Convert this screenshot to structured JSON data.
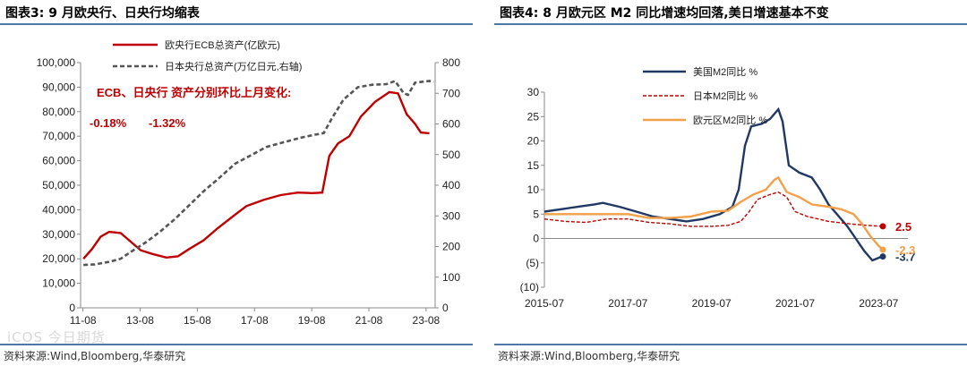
{
  "left": {
    "title": "图表3:  9 月欧央行、日央行均缩表",
    "source": "资料来源:Wind,Bloomberg,华泰研究",
    "watermark": "iCOS 今日期货",
    "annotation": "ECB、日央行 资产分别环比上月变化:",
    "annotation_ecb": "-0.18%",
    "annotation_boj": "-1.32%",
    "chart_data": {
      "type": "line",
      "xlim": [
        2011.5,
        2023.9
      ],
      "x_ticks": [
        "11-08",
        "13-08",
        "15-08",
        "17-08",
        "19-08",
        "21-08",
        "23-08"
      ],
      "y_left_ticks": [
        "0",
        "10,000",
        "20,000",
        "30,000",
        "40,000",
        "50,000",
        "60,000",
        "70,000",
        "80,000",
        "90,000",
        "100,000"
      ],
      "y_left_lim": [
        0,
        100000
      ],
      "y_right_ticks": [
        "0",
        "100",
        "200",
        "300",
        "400",
        "500",
        "600",
        "700",
        "800"
      ],
      "y_right_lim": [
        0,
        800
      ],
      "series": [
        {
          "name": "欧央行ECB总资产(亿欧元)",
          "axis": "left",
          "color": "#c00000",
          "style": "solid",
          "points": [
            [
              2011.6,
              20000
            ],
            [
              2011.9,
              24000
            ],
            [
              2012.2,
              29000
            ],
            [
              2012.5,
              31000
            ],
            [
              2012.9,
              30500
            ],
            [
              2013.2,
              27500
            ],
            [
              2013.6,
              23500
            ],
            [
              2014.0,
              22000
            ],
            [
              2014.5,
              20500
            ],
            [
              2014.9,
              21000
            ],
            [
              2015.3,
              24000
            ],
            [
              2015.8,
              27500
            ],
            [
              2016.3,
              32500
            ],
            [
              2016.9,
              38000
            ],
            [
              2017.3,
              41500
            ],
            [
              2017.9,
              44000
            ],
            [
              2018.5,
              46000
            ],
            [
              2019.1,
              47000
            ],
            [
              2019.6,
              46800
            ],
            [
              2019.95,
              47000
            ],
            [
              2020.2,
              62000
            ],
            [
              2020.5,
              67000
            ],
            [
              2020.9,
              70000
            ],
            [
              2021.3,
              78000
            ],
            [
              2021.8,
              84000
            ],
            [
              2022.3,
              88000
            ],
            [
              2022.6,
              87500
            ],
            [
              2022.9,
              79000
            ],
            [
              2023.2,
              75000
            ],
            [
              2023.4,
              71500
            ],
            [
              2023.7,
              71200
            ]
          ]
        },
        {
          "name": "日本央行总资产(万亿日元,右轴)",
          "axis": "right",
          "color": "#555555",
          "style": "dashed",
          "points": [
            [
              2011.6,
              140
            ],
            [
              2012.0,
              142
            ],
            [
              2012.5,
              150
            ],
            [
              2012.9,
              160
            ],
            [
              2013.3,
              185
            ],
            [
              2013.8,
              215
            ],
            [
              2014.3,
              250
            ],
            [
              2014.8,
              290
            ],
            [
              2015.3,
              335
            ],
            [
              2015.8,
              380
            ],
            [
              2016.3,
              420
            ],
            [
              2016.9,
              470
            ],
            [
              2017.5,
              500
            ],
            [
              2018.0,
              525
            ],
            [
              2018.6,
              540
            ],
            [
              2019.2,
              555
            ],
            [
              2019.7,
              565
            ],
            [
              2020.0,
              570
            ],
            [
              2020.3,
              620
            ],
            [
              2020.7,
              680
            ],
            [
              2021.2,
              720
            ],
            [
              2021.7,
              728
            ],
            [
              2022.2,
              730
            ],
            [
              2022.5,
              740
            ],
            [
              2022.8,
              700
            ],
            [
              2022.95,
              695
            ],
            [
              2023.2,
              735
            ],
            [
              2023.7,
              740
            ],
            [
              2023.85,
              737
            ]
          ]
        }
      ],
      "grid": false,
      "legend_position": "top"
    }
  },
  "right": {
    "title": "图表4:  8 月欧元区 M2 同比增速均回落,美日增速基本不变",
    "source": "资料来源:Wind,Bloomberg,华泰研究",
    "chart_data": {
      "type": "line",
      "xlim": [
        2015.5,
        2024.2
      ],
      "x_ticks": [
        "2015-07",
        "2017-07",
        "2019-07",
        "2021-07",
        "2023-07"
      ],
      "y_ticks": [
        "(10)",
        "(5)",
        "0",
        "5",
        "10",
        "15",
        "20",
        "25",
        "30"
      ],
      "ylim": [
        -10,
        30
      ],
      "series": [
        {
          "name": "美国M2同比  %",
          "color": "#1f3864",
          "style": "solid",
          "end_label": "-3.7",
          "points": [
            [
              2015.5,
              5.5
            ],
            [
              2015.9,
              6.0
            ],
            [
              2016.3,
              6.5
            ],
            [
              2016.7,
              7.0
            ],
            [
              2016.9,
              7.3
            ],
            [
              2017.3,
              6.5
            ],
            [
              2017.7,
              5.5
            ],
            [
              2018.1,
              4.5
            ],
            [
              2018.5,
              4.0
            ],
            [
              2018.9,
              3.5
            ],
            [
              2019.3,
              4.0
            ],
            [
              2019.7,
              5.0
            ],
            [
              2020.0,
              6.5
            ],
            [
              2020.15,
              10
            ],
            [
              2020.3,
              19
            ],
            [
              2020.45,
              23
            ],
            [
              2020.7,
              23.5
            ],
            [
              2020.9,
              24.5
            ],
            [
              2021.1,
              26.5
            ],
            [
              2021.2,
              24
            ],
            [
              2021.35,
              15
            ],
            [
              2021.6,
              13.5
            ],
            [
              2021.9,
              12.5
            ],
            [
              2022.1,
              10
            ],
            [
              2022.3,
              7
            ],
            [
              2022.5,
              5.0
            ],
            [
              2022.75,
              2.5
            ],
            [
              2022.95,
              0.0
            ],
            [
              2023.15,
              -2.5
            ],
            [
              2023.35,
              -4.5
            ],
            [
              2023.55,
              -3.8
            ],
            [
              2023.6,
              -3.7
            ]
          ]
        },
        {
          "name": "日本M2同比  %",
          "color": "#c00000",
          "style": "dashed",
          "end_label": "2.5",
          "points": [
            [
              2015.5,
              4.0
            ],
            [
              2016.0,
              3.5
            ],
            [
              2016.5,
              3.3
            ],
            [
              2017.0,
              4.0
            ],
            [
              2017.5,
              4.0
            ],
            [
              2018.0,
              3.3
            ],
            [
              2018.5,
              3.0
            ],
            [
              2019.0,
              2.5
            ],
            [
              2019.5,
              2.5
            ],
            [
              2019.9,
              2.7
            ],
            [
              2020.2,
              3.5
            ],
            [
              2020.4,
              5.5
            ],
            [
              2020.6,
              8.0
            ],
            [
              2020.9,
              9.0
            ],
            [
              2021.1,
              9.5
            ],
            [
              2021.3,
              8.5
            ],
            [
              2021.5,
              5.5
            ],
            [
              2021.8,
              4.5
            ],
            [
              2022.3,
              3.5
            ],
            [
              2022.8,
              3.0
            ],
            [
              2023.2,
              2.7
            ],
            [
              2023.6,
              2.5
            ]
          ]
        },
        {
          "name": "欧元区M2同比  %",
          "color": "#f4a04a",
          "style": "solid",
          "end_label": "-2.3",
          "points": [
            [
              2015.5,
              5.0
            ],
            [
              2016.0,
              5.0
            ],
            [
              2016.5,
              5.0
            ],
            [
              2017.0,
              5.0
            ],
            [
              2017.5,
              5.0
            ],
            [
              2018.0,
              4.2
            ],
            [
              2018.5,
              4.2
            ],
            [
              2019.0,
              4.5
            ],
            [
              2019.5,
              5.5
            ],
            [
              2019.9,
              5.7
            ],
            [
              2020.2,
              7.5
            ],
            [
              2020.5,
              9.0
            ],
            [
              2020.8,
              10.0
            ],
            [
              2021.0,
              12.0
            ],
            [
              2021.1,
              12.5
            ],
            [
              2021.3,
              9.5
            ],
            [
              2021.6,
              8.5
            ],
            [
              2021.9,
              7.0
            ],
            [
              2022.3,
              6.5
            ],
            [
              2022.6,
              6.0
            ],
            [
              2022.9,
              5.0
            ],
            [
              2023.1,
              3.0
            ],
            [
              2023.3,
              0.5
            ],
            [
              2023.5,
              -1.5
            ],
            [
              2023.6,
              -2.3
            ]
          ]
        }
      ],
      "grid": false,
      "legend_position": "top-left"
    }
  }
}
